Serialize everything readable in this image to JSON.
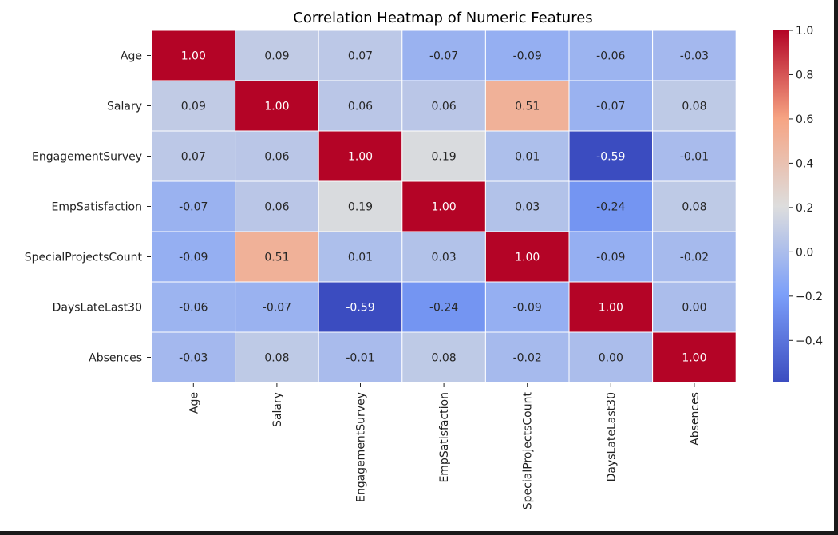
{
  "chart_data": {
    "type": "heatmap",
    "title": "Correlation Heatmap of Numeric Features",
    "rows": [
      "Age",
      "Salary",
      "EngagementSurvey",
      "EmpSatisfaction",
      "SpecialProjectsCount",
      "DaysLateLast30",
      "Absences"
    ],
    "columns": [
      "Age",
      "Salary",
      "EngagementSurvey",
      "EmpSatisfaction",
      "SpecialProjectsCount",
      "DaysLateLast30",
      "Absences"
    ],
    "values": [
      [
        1.0,
        0.09,
        0.07,
        -0.07,
        -0.09,
        -0.06,
        -0.03
      ],
      [
        0.09,
        1.0,
        0.06,
        0.06,
        0.51,
        -0.07,
        0.08
      ],
      [
        0.07,
        0.06,
        1.0,
        0.19,
        0.01,
        -0.59,
        -0.01
      ],
      [
        -0.07,
        0.06,
        0.19,
        1.0,
        0.03,
        -0.24,
        0.08
      ],
      [
        -0.09,
        0.51,
        0.01,
        0.03,
        1.0,
        -0.09,
        -0.02
      ],
      [
        -0.06,
        -0.07,
        -0.59,
        -0.24,
        -0.09,
        1.0,
        0.0
      ],
      [
        -0.03,
        0.08,
        -0.01,
        0.08,
        -0.02,
        0.0,
        1.0
      ]
    ],
    "value_labels": [
      [
        "1.00",
        "0.09",
        "0.07",
        "-0.07",
        "-0.09",
        "-0.06",
        "-0.03"
      ],
      [
        "0.09",
        "1.00",
        "0.06",
        "0.06",
        "0.51",
        "-0.07",
        "0.08"
      ],
      [
        "0.07",
        "0.06",
        "1.00",
        "0.19",
        "0.01",
        "-0.59",
        "-0.01"
      ],
      [
        "-0.07",
        "0.06",
        "0.19",
        "1.00",
        "0.03",
        "-0.24",
        "0.08"
      ],
      [
        "-0.09",
        "0.51",
        "0.01",
        "0.03",
        "1.00",
        "-0.09",
        "-0.02"
      ],
      [
        "-0.06",
        "-0.07",
        "-0.59",
        "-0.24",
        "-0.09",
        "1.00",
        "0.00"
      ],
      [
        "-0.03",
        "0.08",
        "-0.01",
        "0.08",
        "-0.02",
        "0.00",
        "1.00"
      ]
    ],
    "colormap": "coolwarm",
    "color_range": [
      -0.59,
      1.0
    ],
    "colorbar_ticks": [
      1.0,
      0.8,
      0.6,
      0.4,
      0.2,
      0.0,
      -0.2,
      -0.4
    ],
    "colorbar_tick_labels": [
      "1.0",
      "0.8",
      "0.6",
      "0.4",
      "0.2",
      "0.0",
      "−0.2",
      "−0.4"
    ],
    "cell_border_color": "#ffffff",
    "legend_position": "right"
  }
}
